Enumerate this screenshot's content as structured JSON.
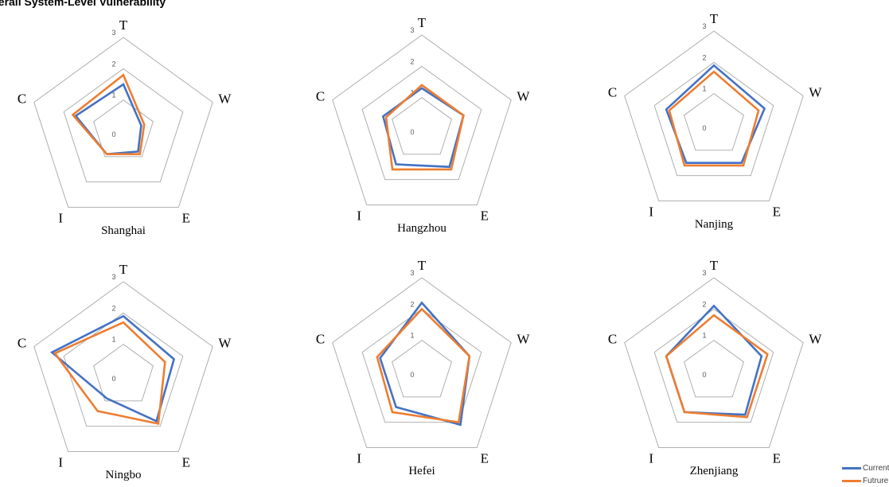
{
  "title": "verall System-Level Vulnerability",
  "legend": {
    "current": {
      "label": "Current",
      "color": "#4472C4"
    },
    "future": {
      "label": "Futrure",
      "color": "#ED7D31"
    }
  },
  "chart_data": [
    {
      "type": "radar",
      "name": "Shanghai",
      "axes": [
        "T",
        "W",
        "E",
        "I",
        "C"
      ],
      "scale_ticks": [
        "0",
        "1",
        "2",
        "3"
      ],
      "range": [
        0,
        3
      ],
      "series": [
        {
          "name": "Current",
          "values": [
            1.5,
            0.6,
            0.8,
            0.9,
            1.6
          ]
        },
        {
          "name": "Futrure",
          "values": [
            1.8,
            0.7,
            0.9,
            0.9,
            1.7
          ]
        }
      ]
    },
    {
      "type": "radar",
      "name": "Hangzhou",
      "axes": [
        "T",
        "W",
        "E",
        "I",
        "C"
      ],
      "scale_ticks": [
        "0",
        "1",
        "2",
        "3"
      ],
      "range": [
        0,
        3
      ],
      "series": [
        {
          "name": "Current",
          "values": [
            1.3,
            1.4,
            1.5,
            1.4,
            1.3
          ]
        },
        {
          "name": "Futrure",
          "values": [
            1.4,
            1.4,
            1.6,
            1.6,
            1.2
          ]
        }
      ]
    },
    {
      "type": "radar",
      "name": "Nanjing",
      "axes": [
        "T",
        "W",
        "E",
        "I",
        "C"
      ],
      "scale_ticks": [
        "0",
        "1",
        "2",
        "3"
      ],
      "range": [
        0,
        3
      ],
      "series": [
        {
          "name": "Current",
          "values": [
            1.9,
            1.7,
            1.5,
            1.5,
            1.6
          ]
        },
        {
          "name": "Futrure",
          "values": [
            1.7,
            1.5,
            1.6,
            1.6,
            1.5
          ]
        }
      ]
    },
    {
      "type": "radar",
      "name": "Ningbo",
      "axes": [
        "T",
        "W",
        "E",
        "I",
        "C"
      ],
      "scale_ticks": [
        "0",
        "1",
        "2",
        "3"
      ],
      "range": [
        0,
        3
      ],
      "series": [
        {
          "name": "Current",
          "values": [
            1.9,
            1.7,
            1.8,
            0.9,
            2.4
          ]
        },
        {
          "name": "Futrure",
          "values": [
            1.7,
            1.4,
            1.9,
            1.4,
            2.3
          ]
        }
      ]
    },
    {
      "type": "radar",
      "name": "Hefei",
      "axes": [
        "T",
        "W",
        "E",
        "I",
        "C"
      ],
      "scale_ticks": [
        "0",
        "1",
        "2",
        "3"
      ],
      "range": [
        0,
        3
      ],
      "series": [
        {
          "name": "Current",
          "values": [
            2.2,
            1.6,
            2.1,
            1.4,
            1.4
          ]
        },
        {
          "name": "Futrure",
          "values": [
            2.0,
            1.6,
            2.0,
            1.6,
            1.5
          ]
        }
      ]
    },
    {
      "type": "radar",
      "name": "Zhenjiang",
      "axes": [
        "T",
        "W",
        "E",
        "I",
        "C"
      ],
      "scale_ticks": [
        "0",
        "1",
        "2",
        "3"
      ],
      "range": [
        0,
        3
      ],
      "series": [
        {
          "name": "Current",
          "values": [
            2.1,
            1.6,
            1.7,
            1.6,
            1.6
          ]
        },
        {
          "name": "Futrure",
          "values": [
            1.8,
            1.8,
            1.8,
            1.6,
            1.6
          ]
        }
      ]
    }
  ]
}
